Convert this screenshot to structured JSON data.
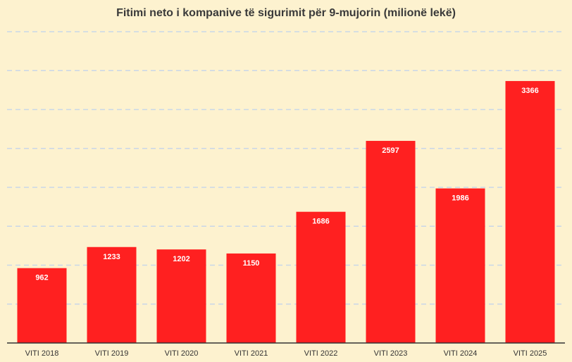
{
  "chart_data": {
    "type": "bar",
    "title": "Fitimi neto i kompanive të sigurimit për 9-mujorin (milionë lekë)",
    "xlabel": "",
    "ylabel": "",
    "categories": [
      "VITI 2018",
      "VITI 2019",
      "VITI 2020",
      "VITI 2021",
      "VITI 2022",
      "VITI 2023",
      "VITI 2024",
      "VITI 2025"
    ],
    "values": [
      962,
      1233,
      1202,
      1150,
      1686,
      2597,
      1986,
      3366
    ],
    "ylim": [
      0,
      4000
    ],
    "grid": true,
    "bar_color": "#ff2020",
    "grid_color": "#c9d7e8",
    "background_color": "#fdf2cf"
  }
}
